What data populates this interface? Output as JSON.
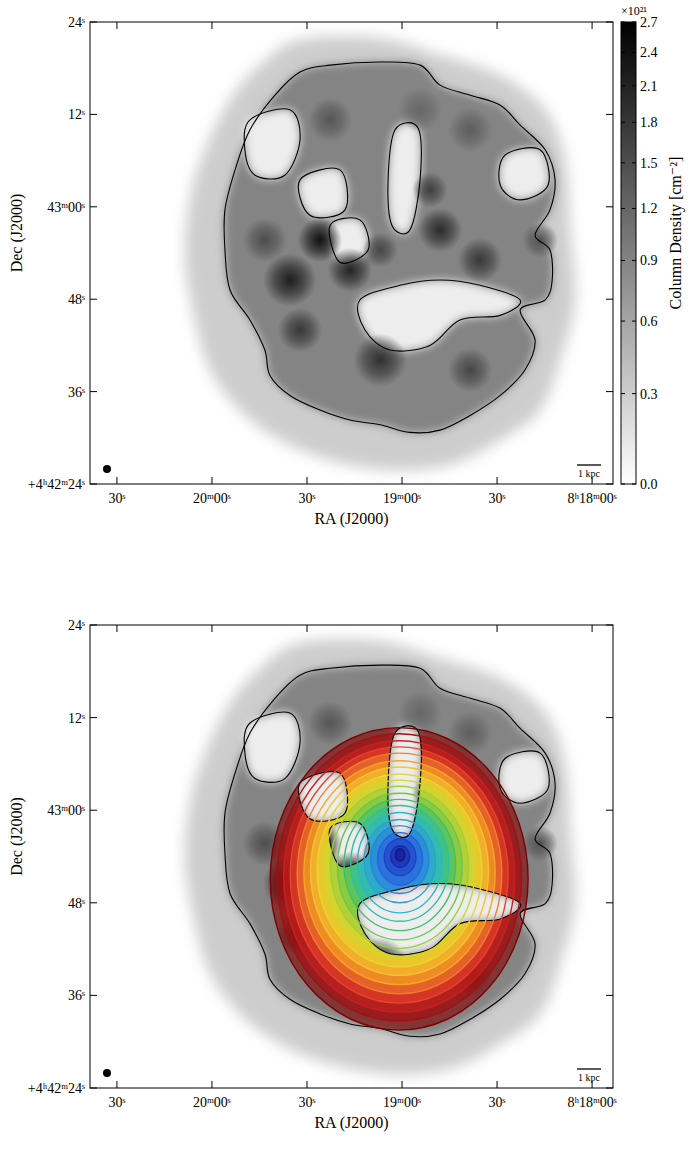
{
  "chart_data": [
    {
      "type": "image",
      "xlabel": "RA (J2000)",
      "ylabel": "Dec (J2000)",
      "xlim": [
        158.5,
        -6.6
      ],
      "ylim": [
        24,
        84
      ],
      "xticks": [
        {
          "value": 150,
          "label": "30ˢ"
        },
        {
          "value": 120,
          "label": "20ᵐ00ˢ"
        },
        {
          "value": 90,
          "label": "30ˢ"
        },
        {
          "value": 60,
          "label": "19ᵐ00ˢ"
        },
        {
          "value": 30,
          "label": "30ˢ"
        },
        {
          "value": 0,
          "label": "8ʰ18ᵐ00ˢ"
        }
      ],
      "yticks": [
        {
          "value": 24,
          "label": "+4ʰ42ᵐ24ˢ"
        },
        {
          "value": 36,
          "label": "36ˢ"
        },
        {
          "value": 48,
          "label": "48ˢ"
        },
        {
          "value": 60,
          "label": "43ᵐ00ˢ"
        },
        {
          "value": 72,
          "label": "12ˢ"
        },
        {
          "value": 84,
          "label": "24ˢ"
        }
      ],
      "scalebar_label": "1 kpc",
      "colorbar": {
        "label": "Column Density [cm⁻²]",
        "offset_label": "×10²¹",
        "range": [
          0,
          2.7
        ],
        "ticks": [
          {
            "value": 0,
            "label": "0.0"
          },
          0.3,
          0.6,
          0.9,
          1.2,
          1.5,
          1.8,
          2.1,
          2.4,
          2.7
        ]
      }
    },
    {
      "type": "image",
      "xlabel": "RA (J2000)",
      "ylabel": "Dec (J2000)",
      "xlim": [
        158.5,
        -6.6
      ],
      "ylim": [
        24,
        84
      ],
      "xticks": [
        {
          "value": 150,
          "label": "30ˢ"
        },
        {
          "value": 120,
          "label": "20ᵐ00ˢ"
        },
        {
          "value": 90,
          "label": "30ˢ"
        },
        {
          "value": 60,
          "label": "19ᵐ00ˢ"
        },
        {
          "value": 30,
          "label": "30ˢ"
        },
        {
          "value": 0,
          "label": "8ʰ18ᵐ00ˢ"
        }
      ],
      "yticks": [
        {
          "value": 24,
          "label": "+4ʰ42ᵐ24ˢ"
        },
        {
          "value": 36,
          "label": "36ˢ"
        },
        {
          "value": 48,
          "label": "48ˢ"
        },
        {
          "value": 60,
          "label": "43ᵐ00ˢ"
        },
        {
          "value": 72,
          "label": "12ˢ"
        },
        {
          "value": 84,
          "label": "24ˢ"
        }
      ],
      "scalebar_label": "1 kpc",
      "rings": [
        {
          "ra": 60.9,
          "dec": 51.1,
          "ra_radius": 40.7,
          "dec_radius": 19.6,
          "color": "#7f0000"
        },
        {
          "ra": 60.9,
          "dec": 51.3,
          "ra_radius": 38.6,
          "dec_radius": 18.6,
          "color": "#a50f0f"
        },
        {
          "ra": 60.9,
          "dec": 51.4,
          "ra_radius": 36.5,
          "dec_radius": 17.6,
          "color": "#cc2020"
        },
        {
          "ra": 60.9,
          "dec": 51.6,
          "ra_radius": 34.4,
          "dec_radius": 16.6,
          "color": "#e8452a"
        },
        {
          "ra": 60.8,
          "dec": 51.8,
          "ra_radius": 32.3,
          "dec_radius": 15.6,
          "color": "#f07f2d"
        },
        {
          "ra": 60.8,
          "dec": 51.9,
          "ra_radius": 30.2,
          "dec_radius": 14.5,
          "color": "#f5a623"
        },
        {
          "ra": 60.8,
          "dec": 52.1,
          "ra_radius": 28.1,
          "dec_radius": 13.5,
          "color": "#f4c430"
        },
        {
          "ra": 60.8,
          "dec": 52.2,
          "ra_radius": 26.0,
          "dec_radius": 12.5,
          "color": "#e5d82a"
        },
        {
          "ra": 60.8,
          "dec": 52.4,
          "ra_radius": 23.9,
          "dec_radius": 11.5,
          "color": "#c9d930"
        },
        {
          "ra": 60.8,
          "dec": 52.6,
          "ra_radius": 21.8,
          "dec_radius": 10.5,
          "color": "#9bd13c"
        },
        {
          "ra": 60.7,
          "dec": 52.7,
          "ra_radius": 19.7,
          "dec_radius": 9.5,
          "color": "#6cc84a"
        },
        {
          "ra": 60.7,
          "dec": 52.9,
          "ra_radius": 17.6,
          "dec_radius": 8.5,
          "color": "#3fbf6a"
        },
        {
          "ra": 60.7,
          "dec": 53.1,
          "ra_radius": 15.5,
          "dec_radius": 7.5,
          "color": "#2ec0a0"
        },
        {
          "ra": 60.7,
          "dec": 53.2,
          "ra_radius": 13.4,
          "dec_radius": 6.5,
          "color": "#29b8c8"
        },
        {
          "ra": 60.7,
          "dec": 53.4,
          "ra_radius": 11.3,
          "dec_radius": 5.4,
          "color": "#2aa0d8"
        },
        {
          "ra": 60.7,
          "dec": 53.6,
          "ra_radius": 9.2,
          "dec_radius": 4.4,
          "color": "#2a80e0"
        },
        {
          "ra": 60.6,
          "dec": 53.7,
          "ra_radius": 7.1,
          "dec_radius": 3.4,
          "color": "#2a5fe0"
        },
        {
          "ra": 60.6,
          "dec": 53.9,
          "ra_radius": 5.0,
          "dec_radius": 2.4,
          "color": "#2040c8"
        },
        {
          "ra": 60.6,
          "dec": 54.0,
          "ra_radius": 3.0,
          "dec_radius": 1.4,
          "color": "#1a2aa8"
        },
        {
          "ra": 60.6,
          "dec": 54.2,
          "ra_radius": 1.5,
          "dec_radius": 0.8,
          "color": "#10188a"
        }
      ]
    }
  ],
  "map": {
    "envelope": {
      "ra": [
        92.2,
        66.9,
        48.0,
        29.0,
        14.8,
        8.5,
        6.9,
        5.4,
        10.1,
        16.4,
        29.0,
        44.8,
        63.8,
        82.7,
        98.5,
        111.2,
        120.6,
        125.4,
        128.5,
        127.0,
        122.2,
        114.3,
        104.8
      ],
      "dec": [
        81.7,
        81.9,
        79.7,
        77.1,
        72.6,
        66.1,
        57.0,
        47.9,
        40.1,
        33.6,
        29.7,
        26.5,
        25.8,
        27.1,
        29.7,
        33.6,
        38.8,
        45.3,
        53.1,
        60.9,
        67.4,
        73.9,
        78.4
      ]
    },
    "envelope_density": 0.3,
    "contour": {
      "ra": [
        92.2,
        82.7,
        66.9,
        54.3,
        48.0,
        38.5,
        29.0,
        22.7,
        14.8,
        11.7,
        13.3,
        18.0,
        13.3,
        12.6,
        14.8,
        22.7,
        18.0,
        21.2,
        29.0,
        38.5,
        48.0,
        57.5,
        66.9,
        76.4,
        85.9,
        95.4,
        101.7,
        103.3,
        108.0,
        114.3,
        115.9,
        115.9,
        112.7,
        108.0,
        100.1
      ],
      "dec": [
        77.5,
        78.4,
        78.8,
        78.4,
        75.8,
        74.5,
        73.2,
        70.6,
        67.4,
        63.5,
        59.6,
        56.3,
        54.4,
        50.5,
        47.9,
        46.6,
        42.7,
        38.8,
        35.5,
        32.9,
        31.0,
        30.7,
        31.7,
        32.3,
        33.6,
        35.5,
        38.1,
        41.4,
        45.3,
        49.2,
        54.4,
        59.6,
        64.8,
        70.0,
        74.5
      ]
    },
    "contour_density": 0.9,
    "holes": [
      {
        "ra": [
          108.0,
          95.4,
          92.2,
          97.0,
          106.4,
          109.6
        ],
        "dec": [
          71.3,
          72.6,
          68.7,
          64.1,
          64.1,
          67.4
        ]
      },
      {
        "ra": [
          62.2,
          54.9,
          54.3,
          57.5,
          63.2,
          64.4
        ],
        "dec": [
          70.0,
          70.2,
          63.5,
          57.0,
          57.6,
          63.5
        ]
      },
      {
        "ra": [
          73.3,
          60.6,
          48.0,
          35.4,
          22.7,
          29.0,
          41.7,
          51.2,
          63.8,
          71.7
        ],
        "dec": [
          47.9,
          49.8,
          50.5,
          49.8,
          47.9,
          45.9,
          45.3,
          42.0,
          41.4,
          44.0
        ]
      },
      {
        "ra": [
          27.5,
          16.4,
          13.9,
          22.7,
          29.0
        ],
        "dec": [
          66.7,
          67.4,
          62.8,
          60.9,
          62.8
        ]
      },
      {
        "ra": [
          82.7,
          73.3,
          70.7,
          79.6
        ],
        "dec": [
          57.6,
          58.3,
          54.4,
          52.8
        ]
      },
      {
        "ra": [
          92.2,
          79.6,
          78.0,
          89.1
        ],
        "dec": [
          63.5,
          64.8,
          59.6,
          58.9
        ]
      }
    ],
    "hole_density": 0.1,
    "clumps": [
      {
        "ra": 85.9,
        "dec": 55.7,
        "size": 5,
        "density": 2.4
      },
      {
        "ra": 95.4,
        "dec": 50.5,
        "size": 6,
        "density": 2.2
      },
      {
        "ra": 76.4,
        "dec": 51.8,
        "size": 5,
        "density": 2.1
      },
      {
        "ra": 48.0,
        "dec": 57.0,
        "size": 5,
        "density": 2.0
      },
      {
        "ra": 35.4,
        "dec": 53.1,
        "size": 5,
        "density": 1.8
      },
      {
        "ra": 66.9,
        "dec": 40.1,
        "size": 6,
        "density": 1.9
      },
      {
        "ra": 38.5,
        "dec": 38.8,
        "size": 5,
        "density": 1.6
      },
      {
        "ra": 103.3,
        "dec": 55.7,
        "size": 5,
        "density": 1.5
      },
      {
        "ra": 82.7,
        "dec": 71.3,
        "size": 5,
        "density": 1.4
      },
      {
        "ra": 38.5,
        "dec": 70.0,
        "size": 5,
        "density": 1.3
      },
      {
        "ra": 16.4,
        "dec": 55.7,
        "size": 4,
        "density": 1.5
      },
      {
        "ra": 54.3,
        "dec": 72.6,
        "size": 5,
        "density": 1.2
      },
      {
        "ra": 92.2,
        "dec": 44.0,
        "size": 5,
        "density": 1.8
      },
      {
        "ra": 51.2,
        "dec": 62.2,
        "size": 4,
        "density": 1.7
      },
      {
        "ra": 66.9,
        "dec": 54.4,
        "size": 4,
        "density": 1.6
      }
    ]
  }
}
